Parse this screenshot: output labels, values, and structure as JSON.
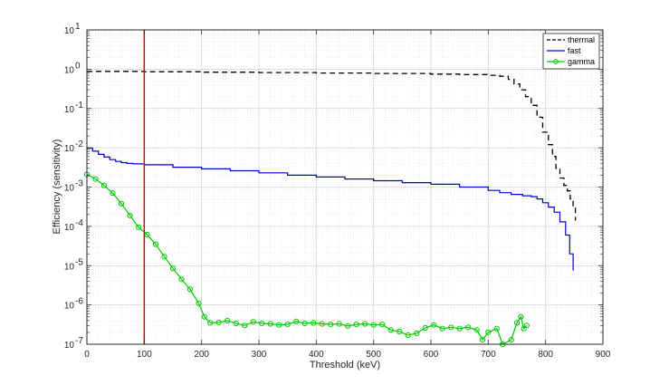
{
  "chart_data": {
    "type": "line",
    "xlabel": "Threshold (keV)",
    "ylabel": "Efficiency (sensitivity)",
    "xlim": [
      0,
      900
    ],
    "ylim": [
      1e-07,
      10
    ],
    "yscale": "log",
    "grid": true,
    "legend_position": "top-right",
    "x_ticks": [
      "0",
      "100",
      "200",
      "300",
      "400",
      "500",
      "600",
      "700",
      "800",
      "900"
    ],
    "y_ticks": [
      {
        "base": "10",
        "exp": "-7",
        "value": 1e-07
      },
      {
        "base": "10",
        "exp": "-6",
        "value": 1e-06
      },
      {
        "base": "10",
        "exp": "-5",
        "value": 1e-05
      },
      {
        "base": "10",
        "exp": "-4",
        "value": 0.0001
      },
      {
        "base": "10",
        "exp": "-3",
        "value": 0.001
      },
      {
        "base": "10",
        "exp": "-2",
        "value": 0.01
      },
      {
        "base": "10",
        "exp": "-1",
        "value": 0.1
      },
      {
        "base": "10",
        "exp": "0",
        "value": 1
      },
      {
        "base": "10",
        "exp": "1",
        "value": 10
      }
    ],
    "annotations": [
      {
        "type": "vline",
        "x": 100,
        "color": "#e00000"
      }
    ],
    "series": [
      {
        "name": "thermal",
        "color": "#000000",
        "style": "dashed",
        "points": [
          [
            0,
            0.88
          ],
          [
            100,
            0.86
          ],
          [
            200,
            0.84
          ],
          [
            300,
            0.82
          ],
          [
            400,
            0.8
          ],
          [
            500,
            0.78
          ],
          [
            600,
            0.75
          ],
          [
            650,
            0.73
          ],
          [
            700,
            0.7
          ],
          [
            720,
            0.66
          ],
          [
            735,
            0.55
          ],
          [
            745,
            0.42
          ],
          [
            755,
            0.3
          ],
          [
            765,
            0.2
          ],
          [
            775,
            0.12
          ],
          [
            785,
            0.06
          ],
          [
            795,
            0.025
          ],
          [
            805,
            0.012
          ],
          [
            812,
            0.006
          ],
          [
            818,
            0.003
          ],
          [
            825,
            0.0017
          ],
          [
            832,
            0.0011
          ],
          [
            838,
            0.0008
          ],
          [
            843,
            0.0005
          ],
          [
            848,
            0.0003
          ],
          [
            852,
            0.00014
          ]
        ]
      },
      {
        "name": "fast",
        "color": "#0000cc",
        "style": "solid",
        "points": [
          [
            0,
            0.0098
          ],
          [
            10,
            0.0082
          ],
          [
            20,
            0.0068
          ],
          [
            30,
            0.0058
          ],
          [
            40,
            0.005
          ],
          [
            50,
            0.0045
          ],
          [
            60,
            0.0042
          ],
          [
            70,
            0.004
          ],
          [
            80,
            0.0039
          ],
          [
            100,
            0.0037
          ],
          [
            150,
            0.0032
          ],
          [
            200,
            0.0029
          ],
          [
            250,
            0.0026
          ],
          [
            300,
            0.0023
          ],
          [
            350,
            0.002
          ],
          [
            400,
            0.0018
          ],
          [
            450,
            0.0016
          ],
          [
            500,
            0.00145
          ],
          [
            550,
            0.0013
          ],
          [
            600,
            0.00118
          ],
          [
            650,
            0.001
          ],
          [
            700,
            0.00082
          ],
          [
            720,
            0.00072
          ],
          [
            740,
            0.00065
          ],
          [
            760,
            0.0006
          ],
          [
            775,
            0.00057
          ],
          [
            785,
            0.0005
          ],
          [
            795,
            0.0004
          ],
          [
            805,
            0.00031
          ],
          [
            815,
            0.00023
          ],
          [
            825,
            0.00013
          ],
          [
            835,
            6e-05
          ],
          [
            842,
            2e-05
          ],
          [
            848,
            7.5e-06
          ]
        ]
      },
      {
        "name": "gamma",
        "color": "#00cc00",
        "style": "solid",
        "marker": "circle",
        "points": [
          [
            0,
            0.0021
          ],
          [
            15,
            0.0016
          ],
          [
            30,
            0.0011
          ],
          [
            45,
            0.0007
          ],
          [
            60,
            0.00038
          ],
          [
            75,
            0.00019
          ],
          [
            90,
            9.5e-05
          ],
          [
            105,
            6.2e-05
          ],
          [
            120,
            3.5e-05
          ],
          [
            135,
            1.7e-05
          ],
          [
            150,
            8.5e-06
          ],
          [
            165,
            4.5e-06
          ],
          [
            180,
            2.5e-06
          ],
          [
            195,
            1.1e-06
          ],
          [
            205,
            5e-07
          ],
          [
            215,
            3.5e-07
          ],
          [
            230,
            3.6e-07
          ],
          [
            245,
            4e-07
          ],
          [
            260,
            3.4e-07
          ],
          [
            275,
            3e-07
          ],
          [
            290,
            3.7e-07
          ],
          [
            305,
            3.4e-07
          ],
          [
            320,
            3.3e-07
          ],
          [
            335,
            3.1e-07
          ],
          [
            350,
            3.2e-07
          ],
          [
            365,
            3.8e-07
          ],
          [
            380,
            3.4e-07
          ],
          [
            395,
            3.5e-07
          ],
          [
            410,
            3.3e-07
          ],
          [
            425,
            3.2e-07
          ],
          [
            440,
            3.3e-07
          ],
          [
            455,
            2.9e-07
          ],
          [
            470,
            3.2e-07
          ],
          [
            485,
            3.3e-07
          ],
          [
            500,
            3.1e-07
          ],
          [
            515,
            3.2e-07
          ],
          [
            530,
            2.3e-07
          ],
          [
            545,
            2.1e-07
          ],
          [
            560,
            1.7e-07
          ],
          [
            575,
            1.9e-07
          ],
          [
            590,
            2.6e-07
          ],
          [
            605,
            3.1e-07
          ],
          [
            620,
            2.5e-07
          ],
          [
            635,
            2.7e-07
          ],
          [
            650,
            2.5e-07
          ],
          [
            665,
            2.7e-07
          ],
          [
            680,
            2.3e-07
          ],
          [
            690,
            1.3e-07
          ],
          [
            700,
            2e-07
          ],
          [
            715,
            2.5e-07
          ],
          [
            725,
            1e-07
          ],
          [
            740,
            1.3e-07
          ],
          [
            750,
            3.5e-07
          ],
          [
            757,
            5e-07
          ],
          [
            762,
            2.5e-07
          ],
          [
            767,
            3e-07
          ]
        ]
      }
    ]
  }
}
